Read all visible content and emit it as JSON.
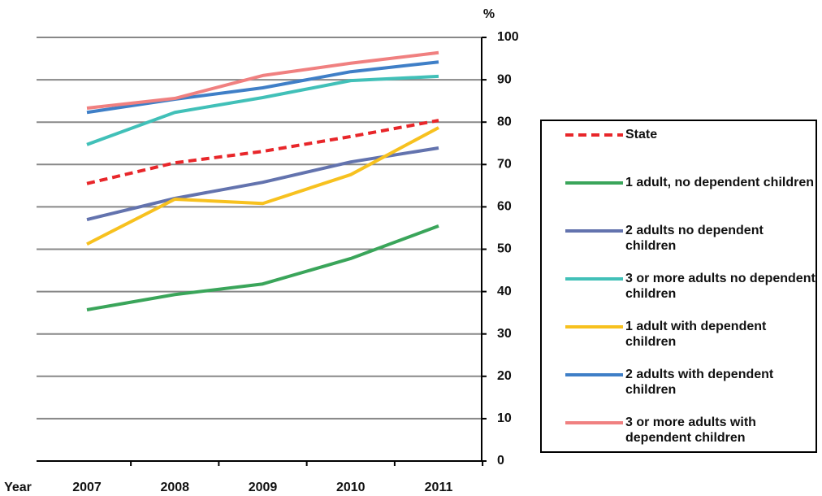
{
  "chart_data": {
    "type": "line",
    "x_label": "Year",
    "y_label": "%",
    "categories": [
      "2007",
      "2008",
      "2009",
      "2010",
      "2011"
    ],
    "ylim": [
      0,
      100
    ],
    "yticks": [
      0,
      10,
      20,
      30,
      40,
      50,
      60,
      70,
      80,
      90,
      100
    ],
    "grid": true,
    "series": [
      {
        "name": "State",
        "color": "#e8262a",
        "dashed": true,
        "values": [
          65.5,
          70.4,
          73.1,
          76.6,
          80.4
        ]
      },
      {
        "name": "1 adult, no dependent children",
        "color": "#3aa55a",
        "values": [
          35.7,
          39.3,
          41.8,
          47.8,
          55.5
        ]
      },
      {
        "name": "2 adults no dependent children",
        "color": "#6373ae",
        "values": [
          57.0,
          62.0,
          65.8,
          70.6,
          73.9
        ]
      },
      {
        "name": "3 or more adults no dependent children",
        "color": "#41c0b8",
        "values": [
          74.7,
          82.3,
          85.8,
          89.8,
          90.8
        ]
      },
      {
        "name": "1 adult with dependent children",
        "color": "#f7c11f",
        "values": [
          51.2,
          61.8,
          60.8,
          67.6,
          78.7
        ]
      },
      {
        "name": "2 adults with dependent children",
        "color": "#3f7fc7",
        "values": [
          82.3,
          85.4,
          88.1,
          91.9,
          94.2
        ]
      },
      {
        "name": "3 or more adults with dependent children",
        "color": "#f08080",
        "values": [
          83.3,
          85.6,
          91.0,
          93.9,
          96.4
        ]
      }
    ]
  }
}
